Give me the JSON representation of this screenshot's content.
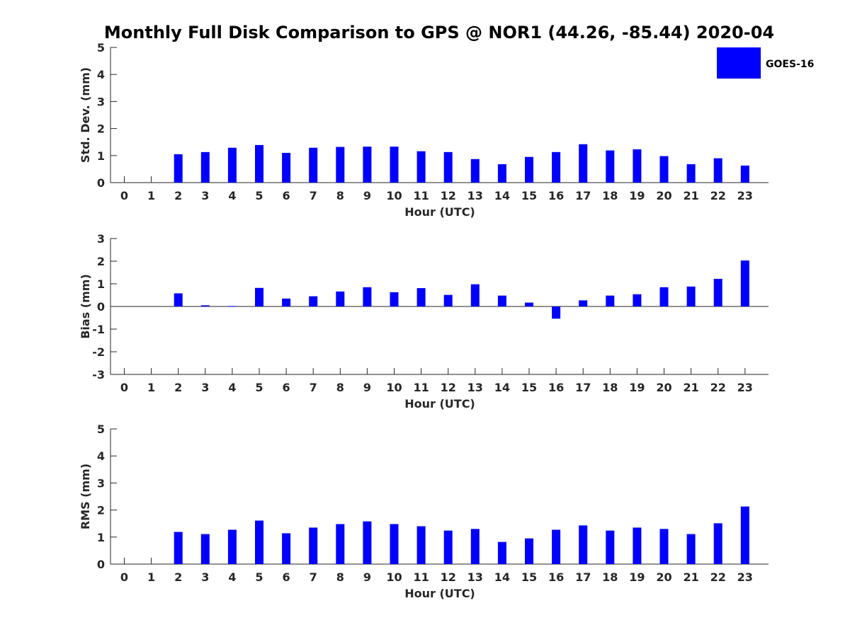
{
  "title": "Monthly Full Disk Comparison to GPS @ NOR1 (44.26, -85.44) 2020-04",
  "colors": {
    "bar": "#0000ff",
    "axis": "#262626",
    "text": "#262626"
  },
  "legend": {
    "label": "GOES-16",
    "placement": "top-right"
  },
  "chart_data": [
    {
      "type": "bar",
      "xlabel": "Hour (UTC)",
      "ylabel": "Std. Dev. (mm)",
      "ylim": [
        0,
        5
      ],
      "yticks": [
        0,
        1,
        2,
        3,
        4,
        5
      ],
      "categories": [
        "0",
        "1",
        "2",
        "3",
        "4",
        "5",
        "6",
        "7",
        "8",
        "9",
        "10",
        "11",
        "12",
        "13",
        "14",
        "15",
        "16",
        "17",
        "18",
        "19",
        "20",
        "21",
        "22",
        "23"
      ],
      "series": [
        {
          "name": "GOES-16",
          "values": [
            null,
            null,
            1.05,
            1.13,
            1.29,
            1.39,
            1.1,
            1.29,
            1.32,
            1.33,
            1.33,
            1.16,
            1.13,
            0.87,
            0.68,
            0.95,
            1.13,
            1.42,
            1.19,
            1.23,
            0.98,
            0.68,
            0.9,
            0.63
          ]
        }
      ]
    },
    {
      "type": "bar",
      "xlabel": "Hour (UTC)",
      "ylabel": "Bias (mm)",
      "ylim": [
        -3,
        3
      ],
      "yticks": [
        -3,
        -2,
        -1,
        0,
        1,
        2,
        3
      ],
      "categories": [
        "0",
        "1",
        "2",
        "3",
        "4",
        "5",
        "6",
        "7",
        "8",
        "9",
        "10",
        "11",
        "12",
        "13",
        "14",
        "15",
        "16",
        "17",
        "18",
        "19",
        "20",
        "21",
        "22",
        "23"
      ],
      "series": [
        {
          "name": "GOES-16",
          "values": [
            null,
            null,
            0.58,
            0.05,
            0.02,
            0.82,
            0.35,
            0.45,
            0.66,
            0.85,
            0.63,
            0.81,
            0.51,
            0.98,
            0.48,
            0.17,
            -0.54,
            0.27,
            0.48,
            0.54,
            0.85,
            0.88,
            1.22,
            2.03
          ]
        }
      ]
    },
    {
      "type": "bar",
      "xlabel": "Hour (UTC)",
      "ylabel": "RMS (mm)",
      "ylim": [
        0,
        5
      ],
      "yticks": [
        0,
        1,
        2,
        3,
        4,
        5
      ],
      "categories": [
        "0",
        "1",
        "2",
        "3",
        "4",
        "5",
        "6",
        "7",
        "8",
        "9",
        "10",
        "11",
        "12",
        "13",
        "14",
        "15",
        "16",
        "17",
        "18",
        "19",
        "20",
        "21",
        "22",
        "23"
      ],
      "series": [
        {
          "name": "GOES-16",
          "values": [
            null,
            null,
            1.19,
            1.11,
            1.27,
            1.61,
            1.14,
            1.35,
            1.48,
            1.58,
            1.48,
            1.4,
            1.24,
            1.3,
            0.82,
            0.95,
            1.27,
            1.43,
            1.24,
            1.35,
            1.3,
            1.11,
            1.51,
            2.13
          ]
        }
      ]
    }
  ]
}
